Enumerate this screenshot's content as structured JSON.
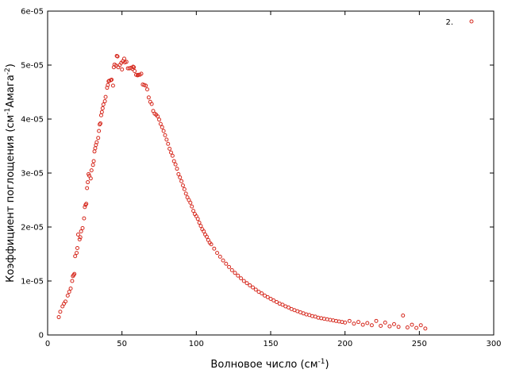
{
  "chart_data": {
    "type": "scatter",
    "xlabel_base": "Волновое число (см",
    "xlabel_sup": "-1",
    "xlabel_end": ")",
    "ylabel_base": "Коэффициент поглощения (см",
    "ylabel_sup1": "-1",
    "ylabel_mid": "Амага",
    "ylabel_sup2": "-2",
    "ylabel_end": ")",
    "xlim": [
      0,
      300
    ],
    "ylim": [
      0,
      6e-05
    ],
    "xticks": [
      0,
      50,
      100,
      150,
      200,
      250,
      300
    ],
    "xtick_labels": [
      "0",
      "50",
      "100",
      "150",
      "200",
      "250",
      "300"
    ],
    "yticks": [
      0,
      1e-05,
      2e-05,
      3e-05,
      4e-05,
      5e-05,
      6e-05
    ],
    "ytick_labels": [
      "0",
      "1e-05",
      "2e-05",
      "3e-05",
      "4e-05",
      "5e-05",
      "6e-05"
    ],
    "grid": false,
    "legend_position": "top-right",
    "marker_color": "#d62a1f",
    "series": [
      {
        "name": "2.",
        "points": [
          [
            7.5,
            3.3e-06
          ],
          [
            8.5,
            4.3e-06
          ],
          [
            10,
            5.3e-06
          ],
          [
            11,
            5.8e-06
          ],
          [
            12,
            6.2e-06
          ],
          [
            13.5,
            7.3e-06
          ],
          [
            14.5,
            8e-06
          ],
          [
            15.5,
            8.6e-06
          ],
          [
            16.5,
            1e-05
          ],
          [
            17,
            1.09e-05
          ],
          [
            17.5,
            1.11e-05
          ],
          [
            18,
            1.13e-05
          ],
          [
            18.5,
            1.46e-05
          ],
          [
            19.5,
            1.52e-05
          ],
          [
            20,
            1.61e-05
          ],
          [
            20.5,
            1.86e-05
          ],
          [
            21.5,
            1.77e-05
          ],
          [
            22,
            1.81e-05
          ],
          [
            22.5,
            1.92e-05
          ],
          [
            23.5,
            1.98e-05
          ],
          [
            24.5,
            2.16e-05
          ],
          [
            25,
            2.37e-05
          ],
          [
            25.5,
            2.41e-05
          ],
          [
            26,
            2.43e-05
          ],
          [
            26.5,
            2.72e-05
          ],
          [
            27,
            2.83e-05
          ],
          [
            27.5,
            2.98e-05
          ],
          [
            28,
            2.95e-05
          ],
          [
            29,
            2.9e-05
          ],
          [
            29.5,
            3.05e-05
          ],
          [
            30.5,
            3.15e-05
          ],
          [
            31,
            3.22e-05
          ],
          [
            31.5,
            3.4e-05
          ],
          [
            32,
            3.46e-05
          ],
          [
            32.5,
            3.52e-05
          ],
          [
            33,
            3.57e-05
          ],
          [
            34,
            3.65e-05
          ],
          [
            34.5,
            3.78e-05
          ],
          [
            35,
            3.9e-05
          ],
          [
            35.5,
            3.92e-05
          ],
          [
            36,
            4.07e-05
          ],
          [
            36.5,
            4.13e-05
          ],
          [
            37,
            4.2e-05
          ],
          [
            37.5,
            4.27e-05
          ],
          [
            38.5,
            4.33e-05
          ],
          [
            39,
            4.41e-05
          ],
          [
            40,
            4.58e-05
          ],
          [
            40.5,
            4.63e-05
          ],
          [
            41,
            4.7e-05
          ],
          [
            41.5,
            4.71e-05
          ],
          [
            42.5,
            4.72e-05
          ],
          [
            43,
            4.73e-05
          ],
          [
            44,
            4.62e-05
          ],
          [
            44.5,
            4.96e-05
          ],
          [
            45,
            5.01e-05
          ],
          [
            46,
            4.99e-05
          ],
          [
            46.5,
            5.17e-05
          ],
          [
            47,
            5.16e-05
          ],
          [
            47.5,
            4.96e-05
          ],
          [
            48.5,
            5e-05
          ],
          [
            49.5,
            5.04e-05
          ],
          [
            50,
            4.92e-05
          ],
          [
            50.5,
            5.07e-05
          ],
          [
            51.5,
            5.12e-05
          ],
          [
            52,
            5.05e-05
          ],
          [
            53,
            5.06e-05
          ],
          [
            54,
            4.94e-05
          ],
          [
            55,
            4.94e-05
          ],
          [
            56,
            4.95e-05
          ],
          [
            57,
            4.93e-05
          ],
          [
            57.5,
            4.97e-05
          ],
          [
            58,
            4.96e-05
          ],
          [
            58.5,
            4.89e-05
          ],
          [
            59.5,
            4.82e-05
          ],
          [
            60.5,
            4.81e-05
          ],
          [
            61,
            4.82e-05
          ],
          [
            62,
            4.82e-05
          ],
          [
            63,
            4.84e-05
          ],
          [
            64,
            4.64e-05
          ],
          [
            65,
            4.63e-05
          ],
          [
            66,
            4.62e-05
          ],
          [
            67,
            4.55e-05
          ],
          [
            68,
            4.4e-05
          ],
          [
            69,
            4.32e-05
          ],
          [
            70,
            4.28e-05
          ],
          [
            71,
            4.15e-05
          ],
          [
            72,
            4.1e-05
          ],
          [
            73,
            4.08e-05
          ],
          [
            74,
            4.05e-05
          ],
          [
            75,
            3.99e-05
          ],
          [
            76,
            3.91e-05
          ],
          [
            77,
            3.85e-05
          ],
          [
            78,
            3.78e-05
          ],
          [
            79,
            3.7e-05
          ],
          [
            80,
            3.62e-05
          ],
          [
            81,
            3.54e-05
          ],
          [
            82,
            3.45e-05
          ],
          [
            83,
            3.38e-05
          ],
          [
            84,
            3.32e-05
          ],
          [
            85,
            3.22e-05
          ],
          [
            86,
            3.16e-05
          ],
          [
            87,
            3.08e-05
          ],
          [
            88,
            2.98e-05
          ],
          [
            89,
            2.92e-05
          ],
          [
            90,
            2.85e-05
          ],
          [
            91,
            2.77e-05
          ],
          [
            92,
            2.7e-05
          ],
          [
            93,
            2.62e-05
          ],
          [
            94,
            2.55e-05
          ],
          [
            95,
            2.5e-05
          ],
          [
            96,
            2.45e-05
          ],
          [
            97,
            2.38e-05
          ],
          [
            98,
            2.3e-05
          ],
          [
            99,
            2.24e-05
          ],
          [
            100,
            2.2e-05
          ],
          [
            101,
            2.15e-05
          ],
          [
            102,
            2.08e-05
          ],
          [
            103,
            2.02e-05
          ],
          [
            104,
            1.96e-05
          ],
          [
            105,
            1.92e-05
          ],
          [
            106,
            1.86e-05
          ],
          [
            107,
            1.82e-05
          ],
          [
            108,
            1.76e-05
          ],
          [
            109,
            1.71e-05
          ],
          [
            110,
            1.68e-05
          ],
          [
            112,
            1.6e-05
          ],
          [
            114,
            1.52e-05
          ],
          [
            116,
            1.45e-05
          ],
          [
            118,
            1.38e-05
          ],
          [
            120,
            1.32e-05
          ],
          [
            122,
            1.26e-05
          ],
          [
            124,
            1.2e-05
          ],
          [
            126,
            1.15e-05
          ],
          [
            128,
            1.1e-05
          ],
          [
            130,
            1.05e-05
          ],
          [
            132,
            1e-05
          ],
          [
            134,
            9.6e-06
          ],
          [
            136,
            9.2e-06
          ],
          [
            138,
            8.8e-06
          ],
          [
            140,
            8.4e-06
          ],
          [
            142,
            8e-06
          ],
          [
            144,
            7.7e-06
          ],
          [
            146,
            7.3e-06
          ],
          [
            148,
            7e-06
          ],
          [
            150,
            6.7e-06
          ],
          [
            152,
            6.4e-06
          ],
          [
            154,
            6.1e-06
          ],
          [
            156,
            5.8e-06
          ],
          [
            158,
            5.6e-06
          ],
          [
            160,
            5.3e-06
          ],
          [
            162,
            5.1e-06
          ],
          [
            164,
            4.8e-06
          ],
          [
            166,
            4.6e-06
          ],
          [
            168,
            4.4e-06
          ],
          [
            170,
            4.2e-06
          ],
          [
            172,
            4e-06
          ],
          [
            174,
            3.8e-06
          ],
          [
            176,
            3.7e-06
          ],
          [
            178,
            3.5e-06
          ],
          [
            180,
            3.4e-06
          ],
          [
            182,
            3.2e-06
          ],
          [
            184,
            3.1e-06
          ],
          [
            186,
            3e-06
          ],
          [
            188,
            2.9e-06
          ],
          [
            190,
            2.8e-06
          ],
          [
            192,
            2.7e-06
          ],
          [
            194,
            2.6e-06
          ],
          [
            196,
            2.5e-06
          ],
          [
            198,
            2.4e-06
          ],
          [
            200,
            2.3e-06
          ],
          [
            203,
            2.6e-06
          ],
          [
            206,
            2.1e-06
          ],
          [
            209,
            2.4e-06
          ],
          [
            212,
            1.9e-06
          ],
          [
            215,
            2.2e-06
          ],
          [
            218,
            1.8e-06
          ],
          [
            221,
            2.6e-06
          ],
          [
            224,
            1.7e-06
          ],
          [
            227,
            2.3e-06
          ],
          [
            230,
            1.6e-06
          ],
          [
            233,
            2e-06
          ],
          [
            236,
            1.5e-06
          ],
          [
            239,
            3.6e-06
          ],
          [
            242,
            1.4e-06
          ],
          [
            245,
            1.9e-06
          ],
          [
            248,
            1.3e-06
          ],
          [
            251,
            1.8e-06
          ],
          [
            254,
            1.2e-06
          ]
        ]
      }
    ]
  }
}
